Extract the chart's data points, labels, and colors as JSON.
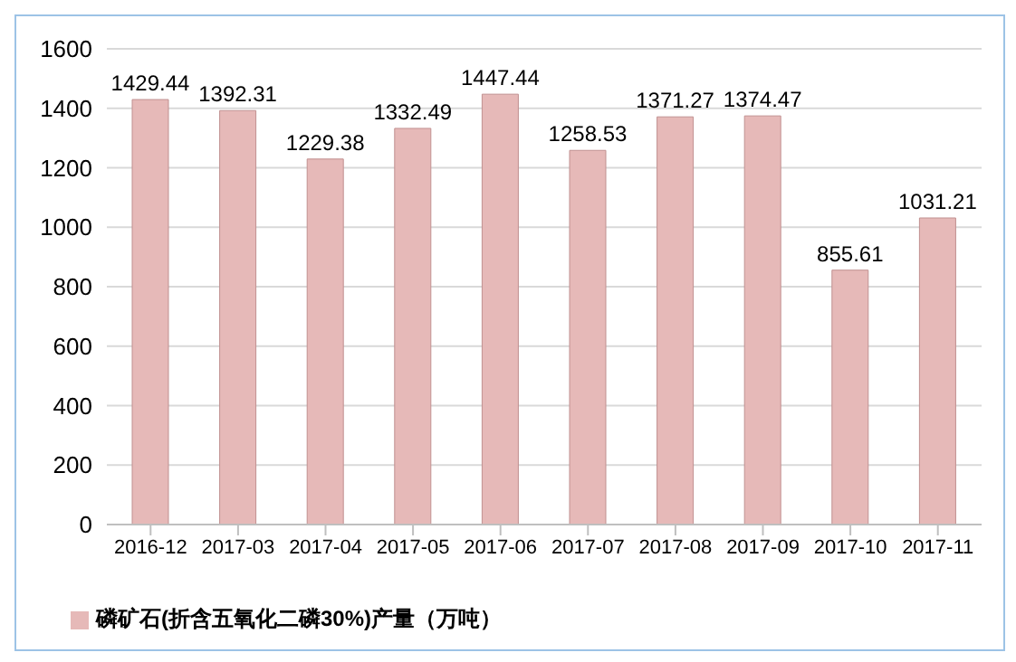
{
  "chart_data": {
    "type": "bar",
    "categories": [
      "2016-12",
      "2017-03",
      "2017-04",
      "2017-05",
      "2017-06",
      "2017-07",
      "2017-08",
      "2017-09",
      "2017-10",
      "2017-11"
    ],
    "series": [
      {
        "name": "磷矿石(折含五氧化二磷30%)产量（万吨）",
        "color": "#e6b9b8",
        "values": [
          1429.44,
          1392.31,
          1229.38,
          1332.49,
          1447.44,
          1258.53,
          1371.27,
          1374.47,
          855.61,
          1031.21
        ]
      }
    ],
    "ylim": [
      0,
      1600
    ],
    "yticks": [
      0,
      200,
      400,
      600,
      800,
      1000,
      1200,
      1400,
      1600
    ],
    "grid": "y",
    "legend": "bottom",
    "data_labels": true
  }
}
